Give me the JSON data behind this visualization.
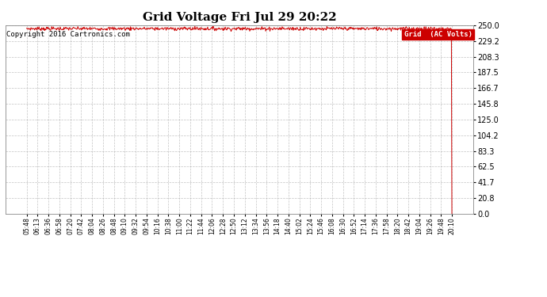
{
  "title": "Grid Voltage Fri Jul 29 20:22",
  "copyright": "Copyright 2016 Cartronics.com",
  "legend_label": "Grid  (AC Volts)",
  "legend_bg": "#cc0000",
  "legend_fg": "#ffffff",
  "line_color": "#cc0000",
  "background_color": "#ffffff",
  "grid_color": "#aaaaaa",
  "ylim": [
    0.0,
    250.0
  ],
  "yticks": [
    0.0,
    20.8,
    41.7,
    62.5,
    83.3,
    104.2,
    125.0,
    145.8,
    166.7,
    187.5,
    208.3,
    229.2,
    250.0
  ],
  "x_labels": [
    "05:48",
    "06:13",
    "06:36",
    "06:58",
    "07:20",
    "07:42",
    "08:04",
    "08:26",
    "08:48",
    "09:10",
    "09:32",
    "09:54",
    "10:16",
    "10:38",
    "11:00",
    "11:22",
    "11:44",
    "12:06",
    "12:28",
    "12:50",
    "13:12",
    "13:34",
    "13:56",
    "14:18",
    "14:40",
    "15:02",
    "15:24",
    "15:46",
    "16:08",
    "16:30",
    "16:52",
    "17:14",
    "17:36",
    "17:58",
    "18:20",
    "18:42",
    "19:04",
    "19:26",
    "19:48",
    "20:10"
  ],
  "num_points": 800,
  "base_voltage": 245.5,
  "noise_amplitude": 1.2
}
